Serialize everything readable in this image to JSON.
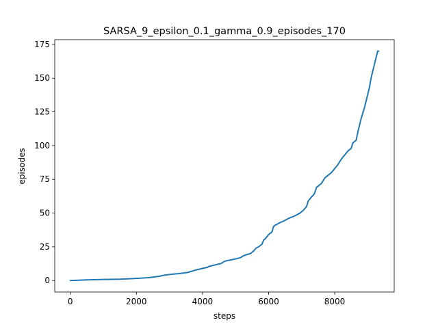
{
  "chart_data": {
    "type": "line",
    "title": "SARSA_9_epsilon_0.1_gamma_0.9_episodes_170",
    "xlabel": "steps",
    "ylabel": "episodes",
    "xlim": [
      -470,
      9800
    ],
    "ylim": [
      -8.5,
      178.5
    ],
    "xticks": [
      0,
      2000,
      4000,
      6000,
      8000
    ],
    "yticks": [
      0,
      25,
      50,
      75,
      100,
      125,
      150,
      175
    ],
    "grid": false,
    "line_color": "#1f77b4",
    "series": [
      {
        "x": [
          0,
          500,
          1000,
          1500,
          2000,
          2400,
          2700,
          2850,
          3000,
          3300,
          3550,
          3800,
          4000,
          4150,
          4200,
          4450,
          4550,
          4650,
          4700,
          4900,
          5000,
          5150,
          5250,
          5450,
          5550,
          5620,
          5700,
          5800,
          5850,
          5900,
          6000,
          6100,
          6150,
          6200,
          6350,
          6450,
          6600,
          6800,
          6950,
          7050,
          7150,
          7200,
          7300,
          7380,
          7450,
          7550,
          7600,
          7700,
          7800,
          7900,
          8000,
          8100,
          8200,
          8300,
          8400,
          8450,
          8500,
          8550,
          8600,
          8650,
          8700,
          8800,
          8900,
          9000,
          9050,
          9100,
          9150,
          9200,
          9250,
          9300,
          9330
        ],
        "y": [
          0,
          0.5,
          0.8,
          1.0,
          1.6,
          2.2,
          3.2,
          4.0,
          4.5,
          5.2,
          6.0,
          7.8,
          9.0,
          9.8,
          10.5,
          12.0,
          12.5,
          14.0,
          14.5,
          15.5,
          16.0,
          17.0,
          18.5,
          20.0,
          22.0,
          24.0,
          25.0,
          27.0,
          30.0,
          31.0,
          34.0,
          36.0,
          40.0,
          41.0,
          43.0,
          44.0,
          46.0,
          48.0,
          50.0,
          52.0,
          55.0,
          59.0,
          62.0,
          64.0,
          69.0,
          71.0,
          72.0,
          76.0,
          78.0,
          80.0,
          83.0,
          86.0,
          90.0,
          93.0,
          96.0,
          97.0,
          98.0,
          102.0,
          103.0,
          104.0,
          110.0,
          120.0,
          128.0,
          138.0,
          143.0,
          150.0,
          155.0,
          160.0,
          165.0,
          170.0,
          170.0
        ]
      }
    ]
  }
}
